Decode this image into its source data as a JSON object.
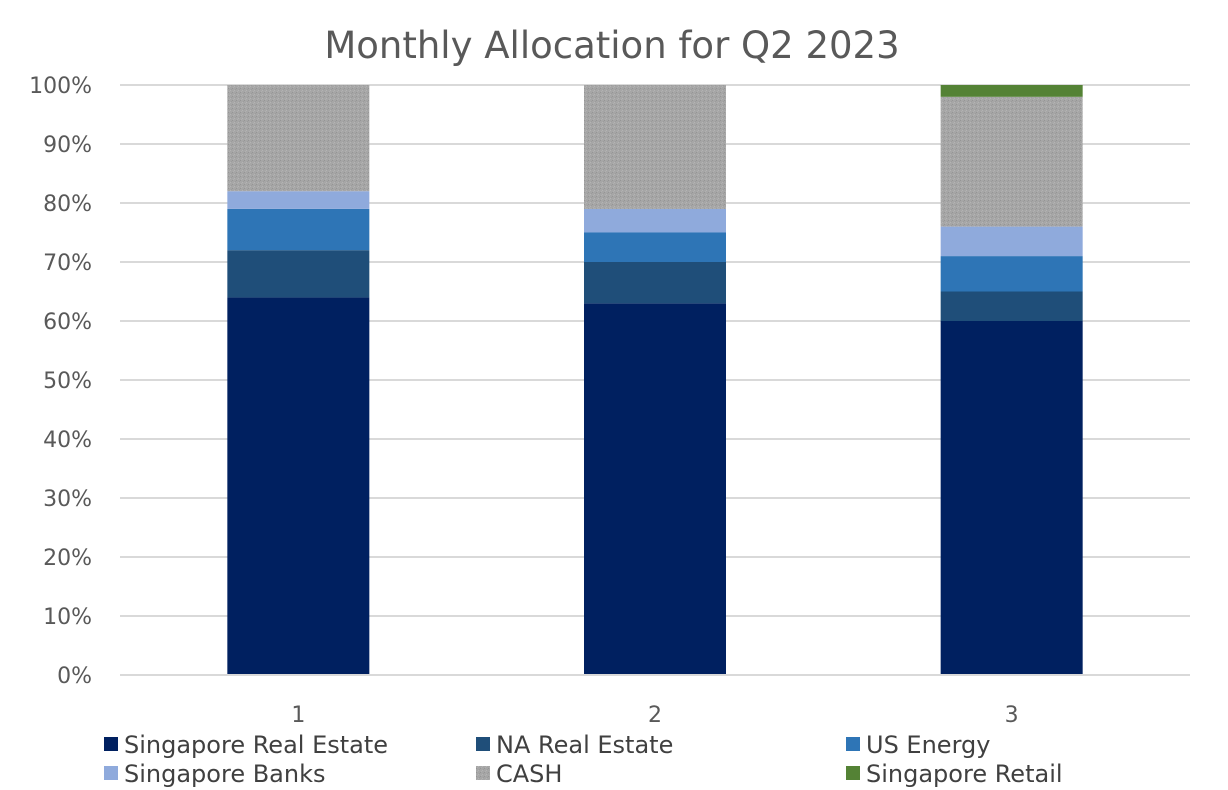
{
  "chart_data": {
    "type": "bar",
    "stacked": true,
    "title": "Monthly Allocation for Q2 2023",
    "xlabel": "",
    "ylabel": "",
    "categories": [
      "1",
      "2",
      "3"
    ],
    "ylim": [
      0,
      100
    ],
    "yticks": [
      "0%",
      "10%",
      "20%",
      "30%",
      "40%",
      "50%",
      "60%",
      "70%",
      "80%",
      "90%",
      "100%"
    ],
    "grid": true,
    "legend_position": "bottom",
    "series": [
      {
        "name": "Singapore Real Estate",
        "color": "#002060",
        "values": [
          64,
          63,
          60
        ]
      },
      {
        "name": "NA Real Estate",
        "color": "#1F4E79",
        "values": [
          8,
          7,
          5
        ]
      },
      {
        "name": "US Energy",
        "color": "#2E75B6",
        "values": [
          7,
          5,
          6
        ]
      },
      {
        "name": "Singapore Banks",
        "color": "#8FAADC",
        "values": [
          3,
          4,
          5
        ]
      },
      {
        "name": "CASH",
        "color": "#A6A6A6",
        "values": [
          18,
          21,
          22
        ]
      },
      {
        "name": "Singapore Retail",
        "color": "#548235",
        "values": [
          0,
          0,
          2
        ]
      }
    ]
  }
}
